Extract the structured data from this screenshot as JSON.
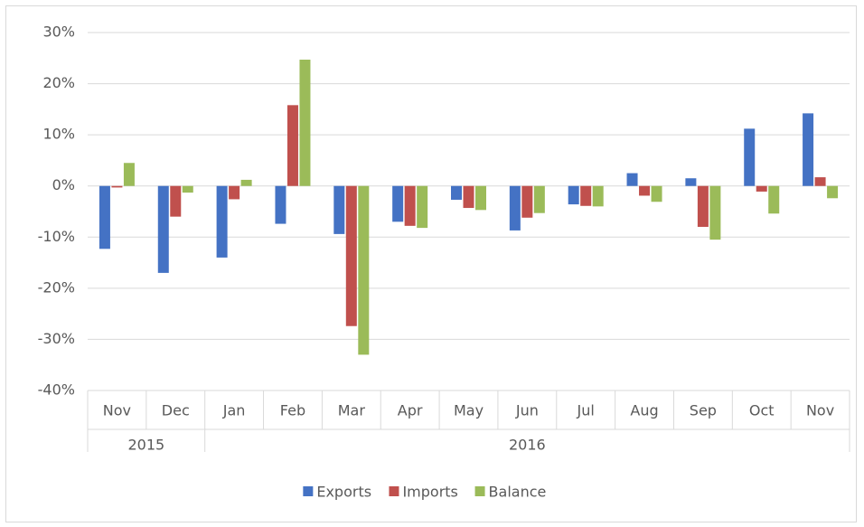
{
  "chart_data": {
    "type": "bar",
    "categories": [
      "Nov",
      "Dec",
      "Jan",
      "Feb",
      "Mar",
      "Apr",
      "May",
      "Jun",
      "Jul",
      "Aug",
      "Sep",
      "Oct",
      "Nov"
    ],
    "groups": [
      "2015",
      null,
      "2016",
      null,
      null,
      null,
      null,
      null,
      null,
      null,
      null,
      null,
      null
    ],
    "series": [
      {
        "name": "Exports",
        "color": "#4472c4",
        "values": [
          -12.3,
          -17,
          -14,
          -7.4,
          -9.4,
          -7,
          -2.7,
          -8.7,
          -3.6,
          2.5,
          1.5,
          11.2,
          14.2
        ]
      },
      {
        "name": "Imports",
        "color": "#c0504d",
        "values": [
          -0.3,
          -6,
          -2.6,
          15.8,
          -27.4,
          -7.8,
          -4.3,
          -6.2,
          -3.9,
          -1.9,
          -8,
          -1.1,
          1.7
        ]
      },
      {
        "name": "Balance",
        "color": "#9bbb59",
        "values": [
          4.5,
          -1.3,
          1.2,
          24.7,
          -33,
          -8.2,
          -4.7,
          -5.3,
          -4,
          -3.1,
          -10.5,
          -5.4,
          -2.4
        ]
      }
    ],
    "ylim": [
      -40,
      30
    ],
    "yticks": [
      {
        "value": -40,
        "label": "-40%"
      },
      {
        "value": -30,
        "label": "-30%"
      },
      {
        "value": -20,
        "label": "-20%"
      },
      {
        "value": -10,
        "label": "-10%"
      },
      {
        "value": 0,
        "label": "0%"
      },
      {
        "value": 10,
        "label": "10%"
      },
      {
        "value": 20,
        "label": "20%"
      },
      {
        "value": 30,
        "label": "30%"
      }
    ],
    "grid": true,
    "legend": "bottom"
  }
}
